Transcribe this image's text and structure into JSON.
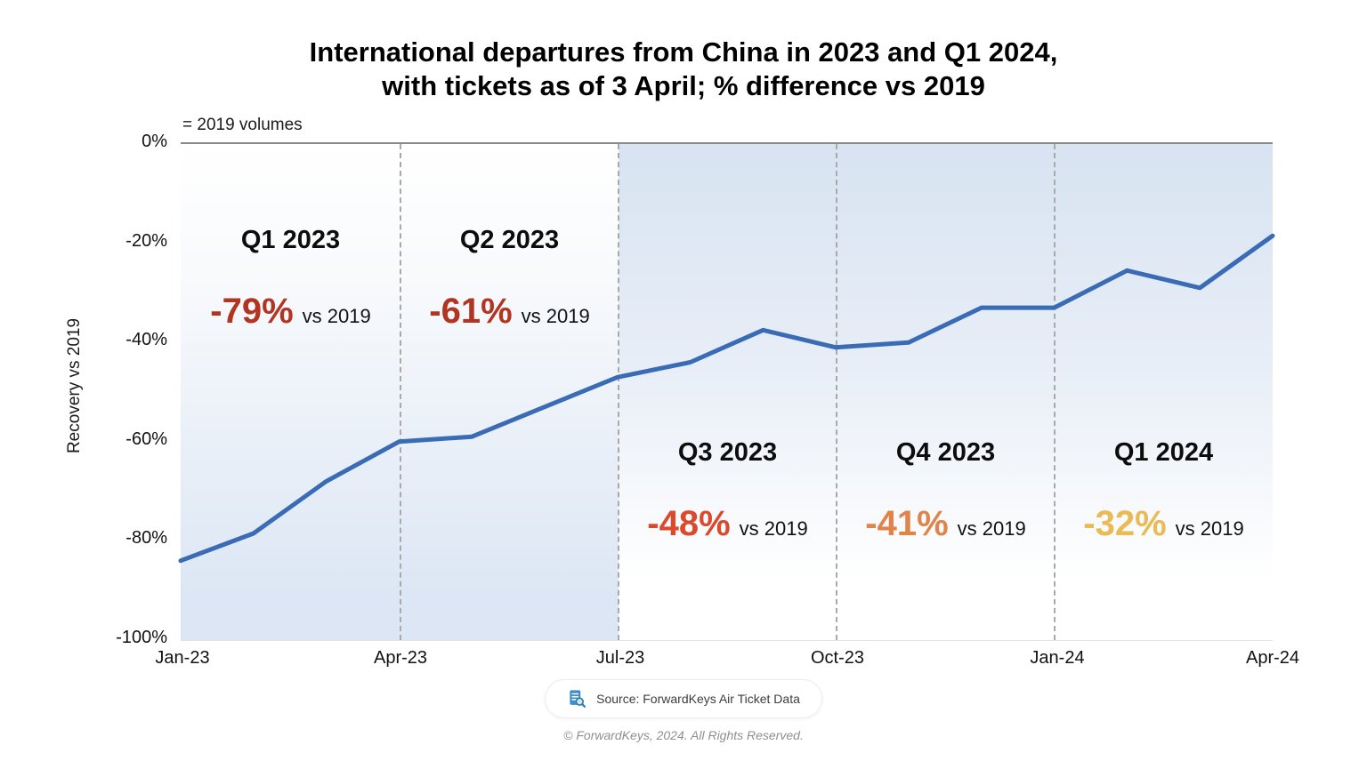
{
  "title": {
    "line1": "International departures from China in 2023 and Q1 2024,",
    "line2": "with tickets as of 3 April; % difference vs 2019"
  },
  "note": "= 2019 volumes",
  "y_axis": {
    "title": "Recovery vs 2019",
    "ticks": [
      "0%",
      "-20%",
      "-40%",
      "-60%",
      "-80%",
      "-100%"
    ]
  },
  "x_axis": {
    "ticks": [
      "Jan-23",
      "Apr-23",
      "Jul-23",
      "Oct-23",
      "Jan-24",
      "Apr-24"
    ]
  },
  "annotations": [
    {
      "quarter": "Q1 2023",
      "value": "-79%",
      "suffix": "vs 2019",
      "color": "#b23522"
    },
    {
      "quarter": "Q2 2023",
      "value": "-61%",
      "suffix": "vs 2019",
      "color": "#b23522"
    },
    {
      "quarter": "Q3 2023",
      "value": "-48%",
      "suffix": "vs 2019",
      "color": "#da4a2c"
    },
    {
      "quarter": "Q4 2023",
      "value": "-41%",
      "suffix": "vs 2019",
      "color": "#e18449"
    },
    {
      "quarter": "Q1 2024",
      "value": "-32%",
      "suffix": "vs 2019",
      "color": "#eaba55"
    }
  ],
  "source_badge": {
    "text": "Source: ForwardKeys Air Ticket Data",
    "icon": "document-search-icon"
  },
  "footer": "© ForwardKeys, 2024. All Rights Reserved.",
  "chart_data": {
    "type": "line",
    "title": "International departures from China in 2023 and Q1 2024, with tickets as of 3 April; % difference vs 2019",
    "x": [
      "Jan-23",
      "Feb-23",
      "Mar-23",
      "Apr-23",
      "May-23",
      "Jun-23",
      "Jul-23",
      "Aug-23",
      "Sep-23",
      "Oct-23",
      "Nov-23",
      "Dec-23",
      "Jan-24",
      "Feb-24",
      "Mar-24",
      "Apr-24"
    ],
    "values": [
      -84,
      -78.5,
      -68,
      -60,
      -59,
      -53,
      -47,
      -44,
      -37.5,
      -41,
      -40,
      -33,
      -33,
      -25.5,
      -29,
      -18.5
    ],
    "unit": "% difference vs 2019",
    "ylabel": "Recovery vs 2019",
    "xlabel": "",
    "ylim": [
      -100,
      0
    ],
    "grid": false,
    "legend": "none",
    "line_color": "#3a6cb5",
    "baseline_note": "= 2019 volumes",
    "quarter_summaries": [
      {
        "quarter": "Q1 2023",
        "pct_vs_2019": -79
      },
      {
        "quarter": "Q2 2023",
        "pct_vs_2019": -61
      },
      {
        "quarter": "Q3 2023",
        "pct_vs_2019": -48
      },
      {
        "quarter": "Q4 2023",
        "pct_vs_2019": -41
      },
      {
        "quarter": "Q1 2024",
        "pct_vs_2019": -32
      }
    ]
  }
}
